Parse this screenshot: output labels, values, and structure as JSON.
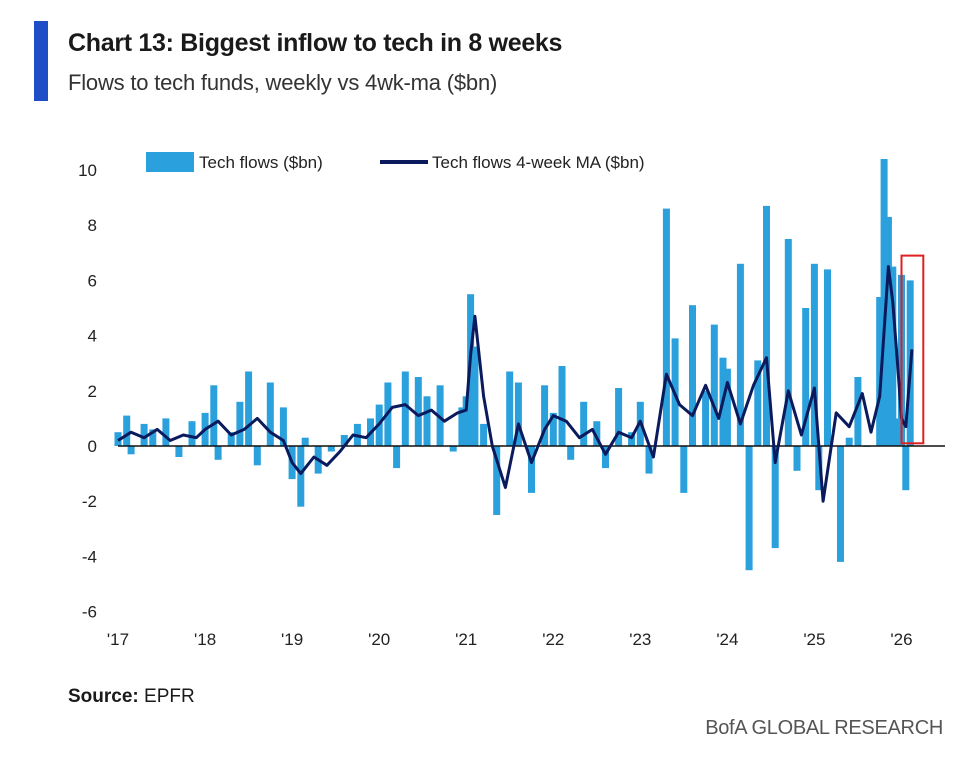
{
  "header": {
    "title": "Chart 13: Biggest inflow to tech in 8 weeks",
    "subtitle": "Flows to tech funds, weekly vs 4wk-ma ($bn)"
  },
  "footer": {
    "source_label": "Source:",
    "source_value": "EPFR",
    "brand": "BofA GLOBAL RESEARCH"
  },
  "colors": {
    "accent": "#1f4fc7",
    "weekly": "#2aa0dc",
    "ma": "#0a1a5c",
    "highlight": "#e02020"
  },
  "chart_data": {
    "type": "bar",
    "title": "Chart 13: Biggest inflow to tech in 8 weeks",
    "subtitle": "Flows to tech funds, weekly vs 4wk-ma ($bn)",
    "ylim": [
      -6,
      10.5
    ],
    "yticks": [
      10,
      8,
      6,
      4,
      2,
      0,
      -2,
      -4,
      -6
    ],
    "xlim": [
      2017,
      2026.5
    ],
    "xticks": [
      {
        "label": "'17",
        "x": 2017
      },
      {
        "label": "'18",
        "x": 2018
      },
      {
        "label": "'19",
        "x": 2019
      },
      {
        "label": "'20",
        "x": 2020
      },
      {
        "label": "'21",
        "x": 2021
      },
      {
        "label": "'22",
        "x": 2022
      },
      {
        "label": "'23",
        "x": 2023
      },
      {
        "label": "'24",
        "x": 2024
      },
      {
        "label": "'25",
        "x": 2025
      },
      {
        "label": "'26",
        "x": 2026
      }
    ],
    "legend": {
      "position": "top-left"
    },
    "grid": false,
    "series": [
      {
        "name": "Tech flows ($bn)",
        "kind": "bar",
        "x": [
          2017.0,
          2017.1,
          2017.15,
          2017.3,
          2017.4,
          2017.55,
          2017.7,
          2017.85,
          2018.0,
          2018.1,
          2018.15,
          2018.3,
          2018.4,
          2018.5,
          2018.6,
          2018.75,
          2018.9,
          2019.0,
          2019.1,
          2019.15,
          2019.3,
          2019.45,
          2019.6,
          2019.75,
          2019.9,
          2020.0,
          2020.1,
          2020.2,
          2020.3,
          2020.45,
          2020.55,
          2020.7,
          2020.85,
          2020.95,
          2021.0,
          2021.05,
          2021.1,
          2021.2,
          2021.35,
          2021.5,
          2021.6,
          2021.75,
          2021.9,
          2022.0,
          2022.1,
          2022.2,
          2022.35,
          2022.5,
          2022.6,
          2022.75,
          2022.9,
          2023.0,
          2023.1,
          2023.3,
          2023.4,
          2023.5,
          2023.6,
          2023.75,
          2023.85,
          2023.95,
          2024.0,
          2024.15,
          2024.25,
          2024.35,
          2024.45,
          2024.55,
          2024.7,
          2024.8,
          2024.9,
          2025.0,
          2025.05,
          2025.15,
          2025.3,
          2025.4,
          2025.5,
          2025.6,
          2025.75,
          2025.8,
          2025.85,
          2025.9,
          2025.95,
          2026.0,
          2026.05,
          2026.1
        ],
        "values": [
          0.5,
          1.1,
          -0.3,
          0.8,
          0.6,
          1.0,
          -0.4,
          0.9,
          1.2,
          2.2,
          -0.5,
          0.5,
          1.6,
          2.7,
          -0.7,
          2.3,
          1.4,
          -1.2,
          -2.2,
          0.3,
          -1.0,
          -0.2,
          0.4,
          0.8,
          1.0,
          1.5,
          2.3,
          -0.8,
          2.7,
          2.5,
          1.8,
          2.2,
          -0.2,
          1.4,
          1.8,
          5.5,
          3.6,
          0.8,
          -2.5,
          2.7,
          2.3,
          -1.7,
          2.2,
          1.2,
          2.9,
          -0.5,
          1.6,
          0.9,
          -0.8,
          2.1,
          0.5,
          1.6,
          -1.0,
          8.6,
          3.9,
          -1.7,
          5.1,
          2.0,
          4.4,
          3.2,
          2.8,
          6.6,
          -4.5,
          3.1,
          8.7,
          -3.7,
          7.5,
          -0.9,
          5.0,
          6.6,
          -1.6,
          6.4,
          -4.2,
          0.3,
          2.5,
          0.0,
          5.4,
          10.4,
          8.3,
          6.5,
          1.0,
          6.2,
          -1.6,
          6.0
        ]
      },
      {
        "name": "Tech flows 4-week MA ($bn)",
        "kind": "line",
        "x": [
          2017.0,
          2017.15,
          2017.3,
          2017.45,
          2017.6,
          2017.75,
          2017.9,
          2018.0,
          2018.15,
          2018.3,
          2018.45,
          2018.6,
          2018.75,
          2018.9,
          2019.0,
          2019.1,
          2019.25,
          2019.4,
          2019.55,
          2019.7,
          2019.85,
          2020.0,
          2020.15,
          2020.3,
          2020.45,
          2020.6,
          2020.75,
          2020.9,
          2021.0,
          2021.05,
          2021.1,
          2021.2,
          2021.3,
          2021.45,
          2021.6,
          2021.75,
          2021.9,
          2022.0,
          2022.15,
          2022.3,
          2022.45,
          2022.6,
          2022.75,
          2022.9,
          2023.0,
          2023.15,
          2023.3,
          2023.45,
          2023.6,
          2023.75,
          2023.9,
          2024.0,
          2024.15,
          2024.3,
          2024.45,
          2024.55,
          2024.7,
          2024.85,
          2025.0,
          2025.1,
          2025.25,
          2025.4,
          2025.55,
          2025.65,
          2025.75,
          2025.85,
          2025.9,
          2025.95,
          2026.0,
          2026.05,
          2026.12
        ],
        "values": [
          0.2,
          0.5,
          0.3,
          0.6,
          0.2,
          0.4,
          0.3,
          0.6,
          0.9,
          0.4,
          0.6,
          1.0,
          0.5,
          0.2,
          -0.6,
          -1.0,
          -0.4,
          -0.7,
          -0.2,
          0.4,
          0.3,
          0.8,
          1.4,
          1.5,
          1.1,
          1.3,
          0.9,
          1.2,
          1.3,
          3.3,
          4.7,
          1.8,
          0.0,
          -1.5,
          0.8,
          -0.6,
          0.6,
          1.1,
          0.9,
          0.3,
          0.6,
          -0.3,
          0.5,
          0.3,
          0.9,
          -0.4,
          2.6,
          1.5,
          1.1,
          2.2,
          1.0,
          2.3,
          0.8,
          2.2,
          3.2,
          -0.6,
          2.0,
          0.4,
          2.1,
          -2.0,
          1.2,
          0.7,
          1.9,
          0.5,
          1.8,
          6.5,
          5.2,
          3.2,
          1.0,
          0.7,
          3.5
        ]
      }
    ],
    "highlight_box": {
      "x_range": [
        2026.0,
        2026.25
      ],
      "y_range": [
        0.1,
        6.9
      ]
    }
  }
}
